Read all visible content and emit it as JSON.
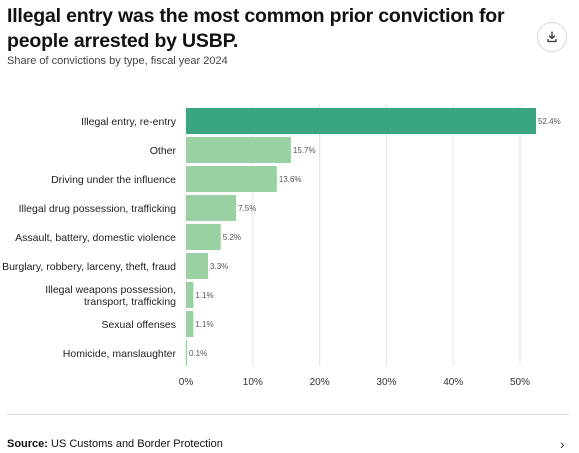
{
  "header": {
    "title": "Illegal entry was the most common prior conviction for people arrested by USBP.",
    "subtitle": "Share of convictions by type, fiscal year 2024",
    "download_icon": "download-icon"
  },
  "footer": {
    "source_prefix": "Source:",
    "source_text": "US Customs and Border Protection",
    "chevron_icon": "chevron-right-icon"
  },
  "colors": {
    "highlight": "#3aa681",
    "base": "#9bd1a2",
    "grid": "#e4e4e4"
  },
  "chart_data": {
    "type": "bar",
    "orientation": "horizontal",
    "title": "Illegal entry was the most common prior conviction for people arrested by USBP.",
    "subtitle": "Share of convictions by type, fiscal year 2024",
    "categories": [
      [
        "Illegal entry, re-entry"
      ],
      [
        "Other"
      ],
      [
        "Driving under the influence"
      ],
      [
        "Illegal drug possession, trafficking"
      ],
      [
        "Assault, battery, domestic violence"
      ],
      [
        "Burglary, robbery, larceny, theft, fraud"
      ],
      [
        "Illegal weapons possession,",
        "transport, trafficking"
      ],
      [
        "Sexual offenses"
      ],
      [
        "Homicide, manslaughter"
      ]
    ],
    "values": [
      52.4,
      15.7,
      13.6,
      7.5,
      5.2,
      3.3,
      1.1,
      1.1,
      0.1
    ],
    "value_labels": [
      "52.4%",
      "15.7%",
      "13.6%",
      "7.5%",
      "5.2%",
      "3.3%",
      "1.1%",
      "1.1%",
      "0.1%"
    ],
    "highlight_index": 0,
    "xlim": [
      0,
      55
    ],
    "xticks": [
      0,
      10,
      20,
      30,
      40,
      50
    ],
    "xtick_labels": [
      "0%",
      "10%",
      "20%",
      "30%",
      "40%",
      "50%"
    ],
    "grid": true,
    "legend": "none"
  }
}
